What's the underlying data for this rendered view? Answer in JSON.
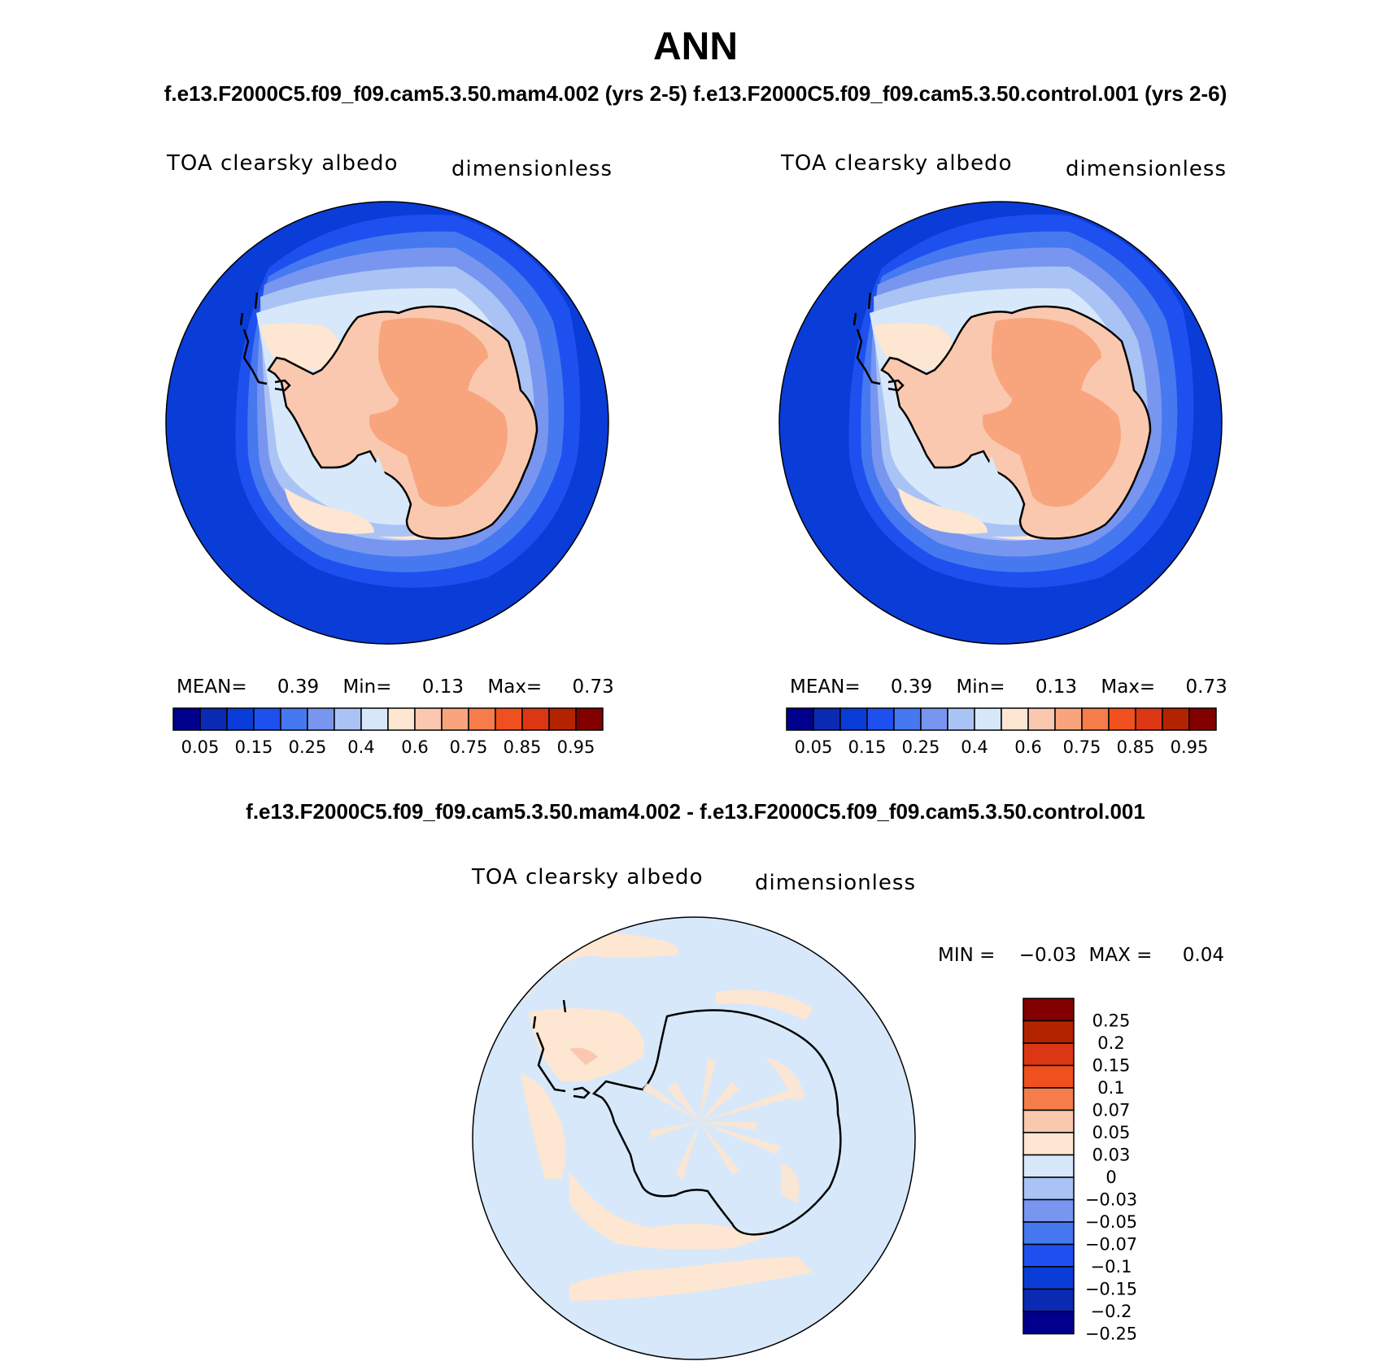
{
  "title": "ANN",
  "subtitle_top": "f.e13.F2000C5.f09_f09.cam5.3.50.mam4.002 (yrs 2-5) f.e13.F2000C5.f09_f09.cam5.3.50.control.001 (yrs 2-6)",
  "subtitle_diff": "f.e13.F2000C5.f09_f09.cam5.3.50.mam4.002 - f.e13.F2000C5.f09_f09.cam5.3.50.control.001",
  "panels": [
    {
      "variable": "TOA clearsky albedo",
      "units": "dimensionless",
      "stats": {
        "mean_label": "MEAN=",
        "mean": "0.39",
        "min_label": "Min=",
        "min": "0.13",
        "max_label": "Max=",
        "max": "0.73"
      }
    },
    {
      "variable": "TOA clearsky albedo",
      "units": "dimensionless",
      "stats": {
        "mean_label": "MEAN=",
        "mean": "0.39",
        "min_label": "Min=",
        "min": "0.13",
        "max_label": "Max=",
        "max": "0.73"
      }
    },
    {
      "variable": "TOA clearsky albedo",
      "units": "dimensionless",
      "stats": {
        "min_label": "MIN =",
        "min": "−0.03",
        "max_label": "MAX =",
        "max": "0.04"
      }
    }
  ],
  "colorbar_abs": {
    "colors": [
      "#00008c",
      "#0a2ab4",
      "#0a3cd7",
      "#1e50f0",
      "#4678f0",
      "#7896f0",
      "#aac3f5",
      "#d7e8fa",
      "#fde6d2",
      "#fac8af",
      "#f8a57d",
      "#f57d4b",
      "#f0501e",
      "#dc3714",
      "#b42300",
      "#820000"
    ],
    "labels": [
      "0.05",
      "0.15",
      "0.25",
      "0.4",
      "0.6",
      "0.75",
      "0.85",
      "0.95"
    ]
  },
  "colorbar_diff": {
    "colors": [
      "#820000",
      "#b42300",
      "#dc3714",
      "#f0501e",
      "#f57d4b",
      "#fac8af",
      "#fde6d2",
      "#d7e8fa",
      "#aac3f5",
      "#7896f0",
      "#4678f0",
      "#1e50f0",
      "#0a3cd7",
      "#0a2ab4",
      "#00008c"
    ],
    "labels": [
      "0.25",
      "0.2",
      "0.15",
      "0.1",
      "0.07",
      "0.05",
      "0.03",
      "0",
      "−0.03",
      "−0.05",
      "−0.07",
      "−0.1",
      "−0.15",
      "−0.2",
      "−0.25"
    ]
  },
  "map_colors": {
    "ocean_deep": "#0a3cd7",
    "ring2": "#1e50f0",
    "ring3": "#4678f0",
    "ring4": "#7896f0",
    "ring5": "#aac3f5",
    "ring6": "#d7e8fa",
    "ice_edge": "#fde6d2",
    "land": "#fac8af",
    "interior": "#f8a57d",
    "diff_bg": "#d7e8fa",
    "diff_pos": "#fde6d2",
    "diff_pos2": "#fac8af",
    "coast": "#000000"
  }
}
